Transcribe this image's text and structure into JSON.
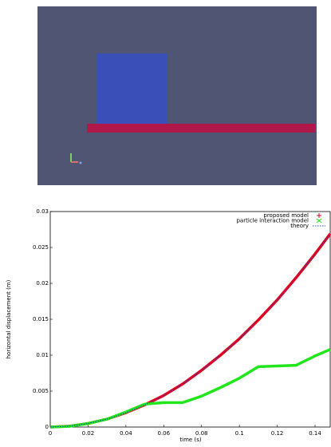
{
  "chart_data": {
    "type": "line",
    "xlabel": "time (s)",
    "ylabel": "horizontal displacement (m)",
    "x": [
      0,
      0.01,
      0.02,
      0.03,
      0.04,
      0.05,
      0.06,
      0.07,
      0.08,
      0.09,
      0.1,
      0.11,
      0.12,
      0.13,
      0.14,
      0.148
    ],
    "series": [
      {
        "name": "proposed model",
        "color": "#e8001c",
        "marker": "+",
        "values": [
          0,
          0.00012,
          0.0005,
          0.0011,
          0.002,
          0.0031,
          0.0044,
          0.006,
          0.0079,
          0.01,
          0.0123,
          0.0149,
          0.0177,
          0.0208,
          0.0241,
          0.0269
        ]
      },
      {
        "name": "particle interaction model",
        "color": "#22e61c",
        "marker": "x",
        "values": [
          0,
          0.0001,
          0.0005,
          0.0011,
          0.0021,
          0.0032,
          0.0034,
          0.0034,
          0.0043,
          0.0055,
          0.0068,
          0.0084,
          0.0085,
          0.0086,
          0.0099,
          0.0108
        ]
      },
      {
        "name": "theory",
        "color": "#2040c0",
        "marker": "dotted",
        "values": [
          0,
          0.00012,
          0.0005,
          0.0011,
          0.002,
          0.0031,
          0.0044,
          0.006,
          0.0079,
          0.01,
          0.0123,
          0.0149,
          0.0177,
          0.0208,
          0.0241,
          0.0269
        ]
      }
    ],
    "xlim": [
      0,
      0.148
    ],
    "ylim": [
      0,
      0.03
    ],
    "xticks": [
      0,
      0.02,
      0.04,
      0.06,
      0.08,
      0.1,
      0.12,
      0.14
    ],
    "yticks": [
      0,
      0.005,
      0.01,
      0.015,
      0.02,
      0.025,
      0.03
    ],
    "legend": "upper right"
  }
}
